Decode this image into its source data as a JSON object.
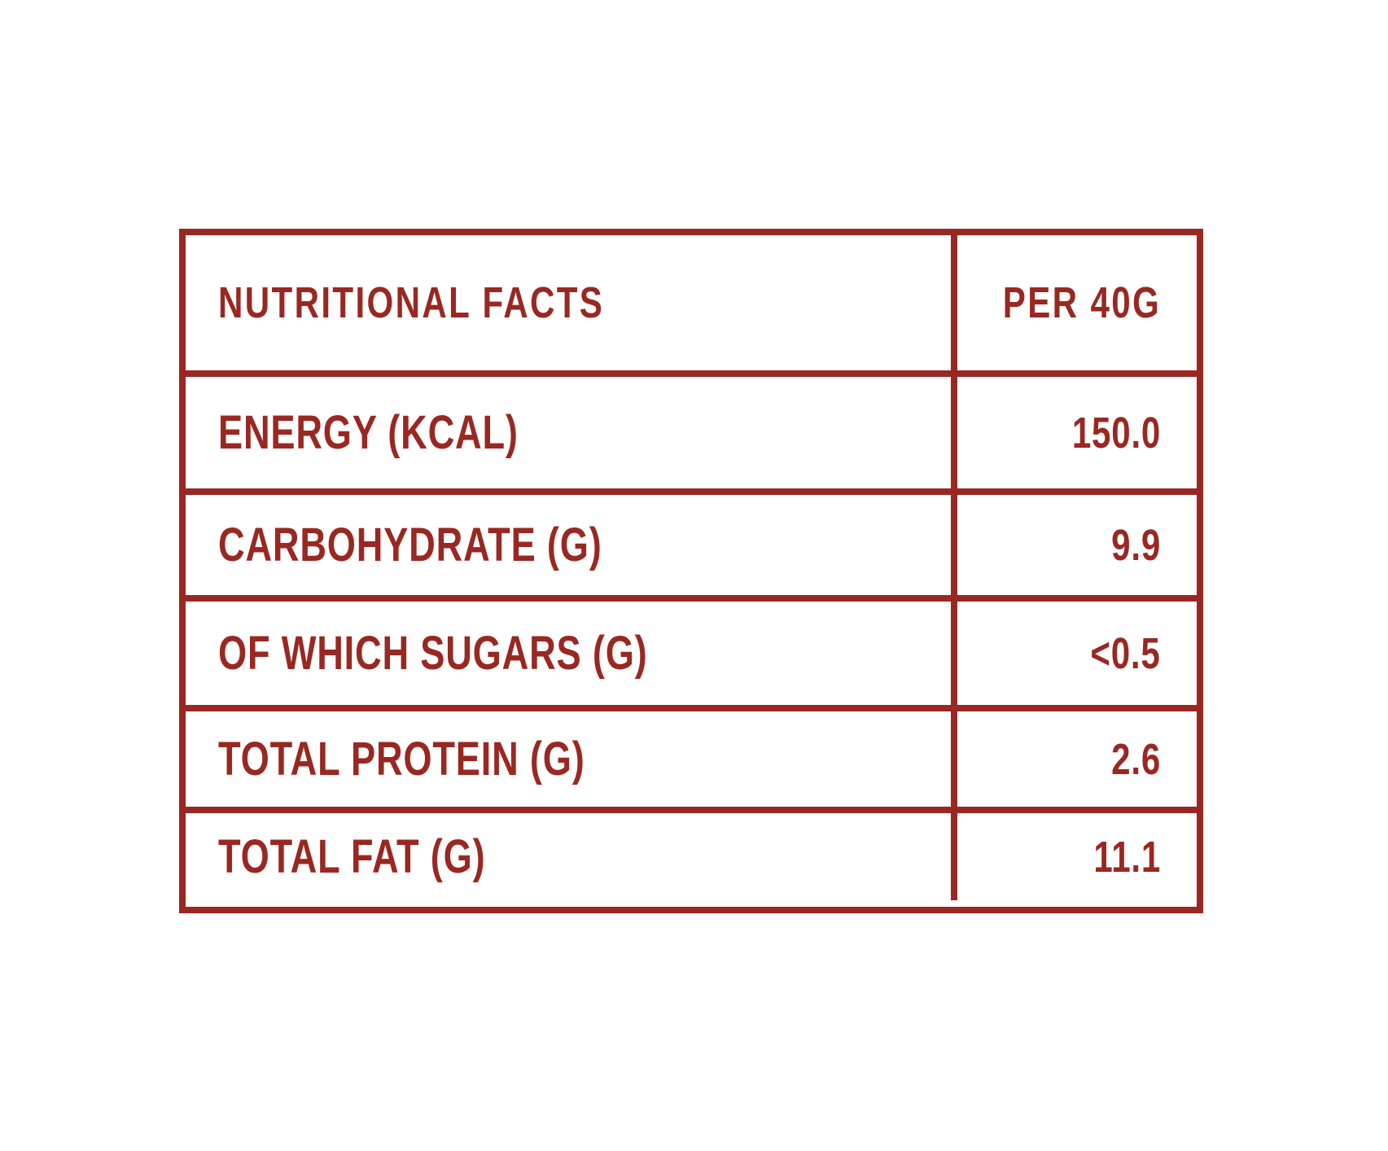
{
  "accent_color": "#992822",
  "background_color": "#ffffff",
  "table": {
    "header": {
      "title": "NUTRITIONAL FACTS",
      "unit_column": "PER 40G"
    },
    "rows": [
      {
        "label": "ENERGY (KCAL)",
        "value": "150.0"
      },
      {
        "label": "CARBOHYDRATE (G)",
        "value": "9.9"
      },
      {
        "label": "OF WHICH SUGARS (G)",
        "value": "<0.5"
      },
      {
        "label": "TOTAL PROTEIN (G)",
        "value": "2.6"
      },
      {
        "label": "TOTAL FAT (G)",
        "value": "11.1"
      }
    ]
  }
}
